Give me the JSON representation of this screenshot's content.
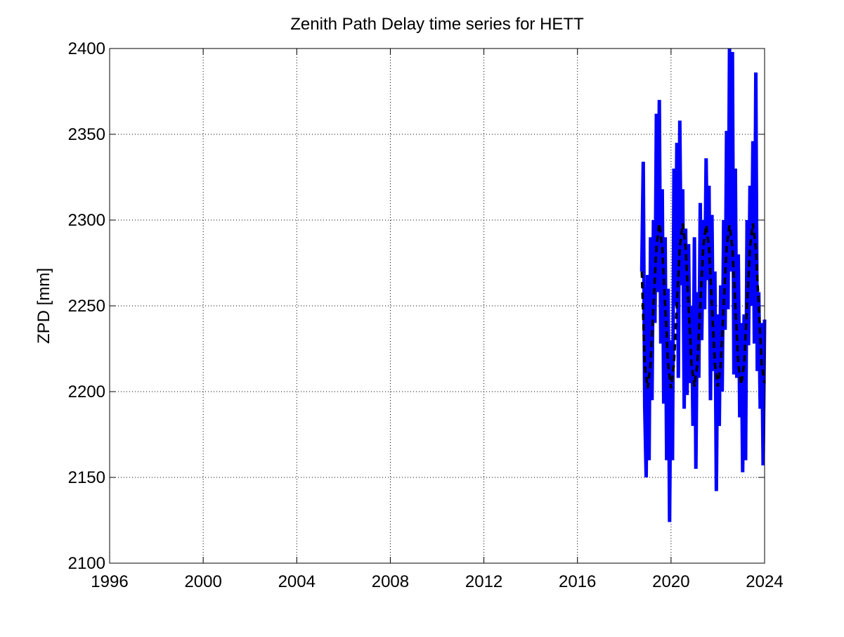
{
  "chart_data": {
    "type": "line",
    "title": "Zenith Path Delay time series for HETT",
    "y_label": "ZPD [mm]",
    "xlim": [
      1996,
      2024
    ],
    "xticks": [
      1996,
      2000,
      2004,
      2008,
      2012,
      2016,
      2020,
      2024
    ],
    "ylim": [
      2100,
      2400
    ],
    "yticks": [
      2100,
      2150,
      2200,
      2250,
      2300,
      2350,
      2400
    ],
    "grid": true,
    "series": [
      {
        "color": "#0000ff",
        "line_style": "solid",
        "x": [
          2018.75,
          2018.8125,
          2018.875,
          2018.9375,
          2019,
          2019.0625,
          2019.125,
          2019.1875,
          2019.25,
          2019.3125,
          2019.375,
          2019.4375,
          2019.5,
          2019.5625,
          2019.625,
          2019.6875,
          2019.75,
          2019.8125,
          2019.875,
          2019.9375,
          2020,
          2020.0625,
          2020.125,
          2020.1875,
          2020.25,
          2020.3125,
          2020.375,
          2020.4375,
          2020.5,
          2020.5625,
          2020.625,
          2020.6875,
          2020.75,
          2020.8125,
          2020.875,
          2020.9375,
          2021,
          2021.0625,
          2021.125,
          2021.1875,
          2021.25,
          2021.3125,
          2021.375,
          2021.4375,
          2021.5,
          2021.5625,
          2021.625,
          2021.6875,
          2021.75,
          2021.8125,
          2021.875,
          2021.9375,
          2022,
          2022.0625,
          2022.125,
          2022.1875,
          2022.25,
          2022.3125,
          2022.375,
          2022.4375,
          2022.5,
          2022.5625,
          2022.625,
          2022.6875,
          2022.75,
          2022.8125,
          2022.875,
          2022.9375,
          2023,
          2023.0625,
          2023.125,
          2023.1875,
          2023.25,
          2023.3125,
          2023.375,
          2023.4375,
          2023.5,
          2023.5625,
          2023.625,
          2023.6875,
          2023.75,
          2023.8125,
          2023.875,
          2023.9375,
          2024
        ],
        "values": [
          2270,
          2334,
          2192,
          2150,
          2268,
          2160,
          2290,
          2195,
          2300,
          2240,
          2362,
          2258,
          2370,
          2228,
          2318,
          2193,
          2290,
          2160,
          2260,
          2124,
          2230,
          2160,
          2330,
          2250,
          2345,
          2208,
          2358,
          2262,
          2318,
          2190,
          2295,
          2198,
          2286,
          2205,
          2250,
          2180,
          2290,
          2155,
          2258,
          2208,
          2310,
          2230,
          2300,
          2248,
          2336,
          2265,
          2320,
          2195,
          2303,
          2212,
          2270,
          2142,
          2245,
          2180,
          2262,
          2200,
          2300,
          2236,
          2352,
          2248,
          2400,
          2270,
          2398,
          2210,
          2330,
          2208,
          2280,
          2185,
          2240,
          2153,
          2245,
          2160,
          2300,
          2227,
          2320,
          2250,
          2346,
          2228,
          2386,
          2212,
          2258,
          2190,
          2240,
          2157,
          2242
        ]
      },
      {
        "color": "#000000",
        "line_style": "dashed",
        "x": [
          2018.75,
          2018.875,
          2019,
          2019.125,
          2019.25,
          2019.375,
          2019.5,
          2019.625,
          2019.75,
          2019.875,
          2020,
          2020.125,
          2020.25,
          2020.375,
          2020.5,
          2020.625,
          2020.75,
          2020.875,
          2021,
          2021.125,
          2021.25,
          2021.375,
          2021.5,
          2021.625,
          2021.75,
          2021.875,
          2022,
          2022.125,
          2022.25,
          2022.375,
          2022.5,
          2022.625,
          2022.75,
          2022.875,
          2023,
          2023.125,
          2023.25,
          2023.375,
          2023.5,
          2023.625,
          2023.75,
          2023.875,
          2024
        ],
        "values": [
          2270,
          2216,
          2202,
          2216,
          2250,
          2284,
          2298,
          2284,
          2250,
          2216,
          2202,
          2216,
          2250,
          2284,
          2298,
          2284,
          2250,
          2216,
          2203,
          2216,
          2250,
          2284,
          2297,
          2284,
          2250,
          2216,
          2203,
          2216,
          2250,
          2284,
          2297,
          2284,
          2250,
          2216,
          2204,
          2216,
          2250,
          2284,
          2298,
          2284,
          2250,
          2216,
          2205
        ]
      }
    ]
  }
}
